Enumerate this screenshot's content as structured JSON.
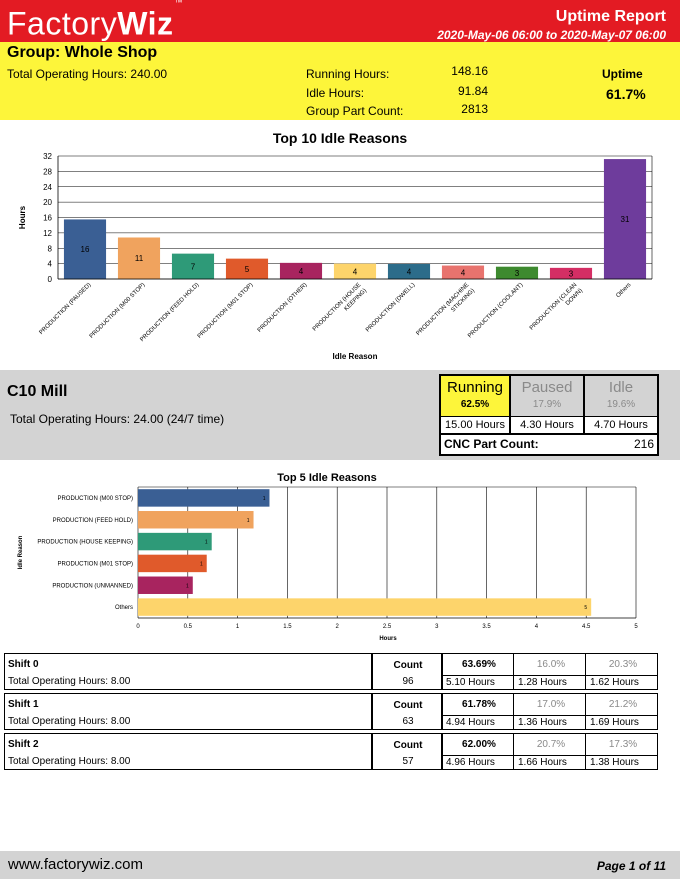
{
  "header": {
    "logo_plain": "Factory",
    "logo_bold": "Wiz",
    "logo_tm": "™",
    "title": "Uptime Report",
    "range": "2020-May-06 06:00 to 2020-May-07 06:00"
  },
  "group": {
    "title": "Group: Whole Shop",
    "total_operating": "Total Operating Hours: 240.00",
    "running_label": "Running Hours:",
    "running_value": "148.16",
    "idle_label": "Idle Hours:",
    "idle_value": "91.84",
    "part_label": "Group Part Count:",
    "part_value": "2813",
    "uptime_label": "Uptime",
    "uptime_value": "61.7%"
  },
  "colors": {
    "header_red": "#e31b23",
    "band_yellow": "#fdf53a",
    "band_gray": "#d3d3d3"
  },
  "chart_data": [
    {
      "type": "bar",
      "title": "Top 10 Idle Reasons",
      "xlabel": "Idle Reason",
      "ylabel": "Hours",
      "ylim": [
        0,
        32
      ],
      "yticks": [
        0,
        4,
        8,
        12,
        16,
        20,
        24,
        28,
        32
      ],
      "grid": true,
      "categories": [
        "PRODUCTION (PAUSED)",
        "PRODUCTION (M00 STOP)",
        "PRODUCTION (FEED HOLD)",
        "PRODUCTION (M01 STOP)",
        "PRODUCTION (OTHER)",
        "PRODUCTION (HOUSE KEEPING)",
        "PRODUCTION (DWELL)",
        "PRODUCTION (MACHINE STICKING)",
        "PRODUCTION (COOLANT)",
        "PRODUCTION (CLEAN DOWN)",
        "Others"
      ],
      "values": [
        15.5,
        10.8,
        6.6,
        5.3,
        4.2,
        4.0,
        3.9,
        3.5,
        3.2,
        2.9,
        31.2
      ],
      "labels": [
        "16",
        "11",
        "7",
        "5",
        "4",
        "4",
        "4",
        "4",
        "3",
        "3",
        "31"
      ],
      "colors": [
        "#3a5f94",
        "#f0a35e",
        "#2e9a78",
        "#e05a2b",
        "#a8245f",
        "#fdd46b",
        "#2c6c8a",
        "#e8736e",
        "#3e8a2f",
        "#d42e64",
        "#6e3c9c"
      ]
    },
    {
      "type": "bar",
      "orientation": "horizontal",
      "title": "Top 5 Idle Reasons",
      "xlabel": "Hours",
      "ylabel": "Idle Reason",
      "xlim": [
        0,
        5
      ],
      "xticks": [
        "0",
        "0.5",
        "1",
        "1.5",
        "2",
        "2.5",
        "3",
        "3.5",
        "4",
        "4.5",
        "5"
      ],
      "grid": true,
      "categories": [
        "PRODUCTION (M00 STOP)",
        "PRODUCTION (FEED HOLD)",
        "PRODUCTION (HOUSE KEEPING)",
        "PRODUCTION (M01 STOP)",
        "PRODUCTION (UNMANNED)",
        "Others"
      ],
      "values": [
        1.32,
        1.16,
        0.74,
        0.69,
        0.55,
        4.55
      ],
      "labels": [
        "1",
        "1",
        "1",
        "1",
        "1",
        "5"
      ],
      "colors": [
        "#3a5f94",
        "#f0a35e",
        "#2e9a78",
        "#e05a2b",
        "#a8245f",
        "#fdd46b"
      ]
    }
  ],
  "mill": {
    "title": "C10 Mill",
    "total_operating": "Total Operating Hours: 24.00 (24/7 time)",
    "running_label": "Running",
    "running_pct": "62.5%",
    "running_hrs": "15.00 Hours",
    "paused_label": "Paused",
    "paused_pct": "17.9%",
    "paused_hrs": "4.30 Hours",
    "idle_label": "Idle",
    "idle_pct": "19.6%",
    "idle_hrs": "4.70 Hours",
    "part_label": "CNC Part Count:",
    "part_value": "216"
  },
  "shifts": [
    {
      "name": "Shift 0",
      "total": "Total Operating Hours: 8.00",
      "count_label": "Count",
      "count": "96",
      "run_pct": "63.69%",
      "run_hrs": "5.10 Hours",
      "pause_pct": "16.0%",
      "pause_hrs": "1.28 Hours",
      "idle_pct": "20.3%",
      "idle_hrs": "1.62 Hours"
    },
    {
      "name": "Shift 1",
      "total": "Total Operating Hours: 8.00",
      "count_label": "Count",
      "count": "63",
      "run_pct": "61.78%",
      "run_hrs": "4.94 Hours",
      "pause_pct": "17.0%",
      "pause_hrs": "1.36 Hours",
      "idle_pct": "21.2%",
      "idle_hrs": "1.69 Hours"
    },
    {
      "name": "Shift 2",
      "total": "Total Operating Hours: 8.00",
      "count_label": "Count",
      "count": "57",
      "run_pct": "62.00%",
      "run_hrs": "4.96 Hours",
      "pause_pct": "20.7%",
      "pause_hrs": "1.66 Hours",
      "idle_pct": "17.3%",
      "idle_hrs": "1.38 Hours"
    }
  ],
  "footer": {
    "url": "www.factorywiz.com",
    "page": "Page 1 of 11"
  }
}
